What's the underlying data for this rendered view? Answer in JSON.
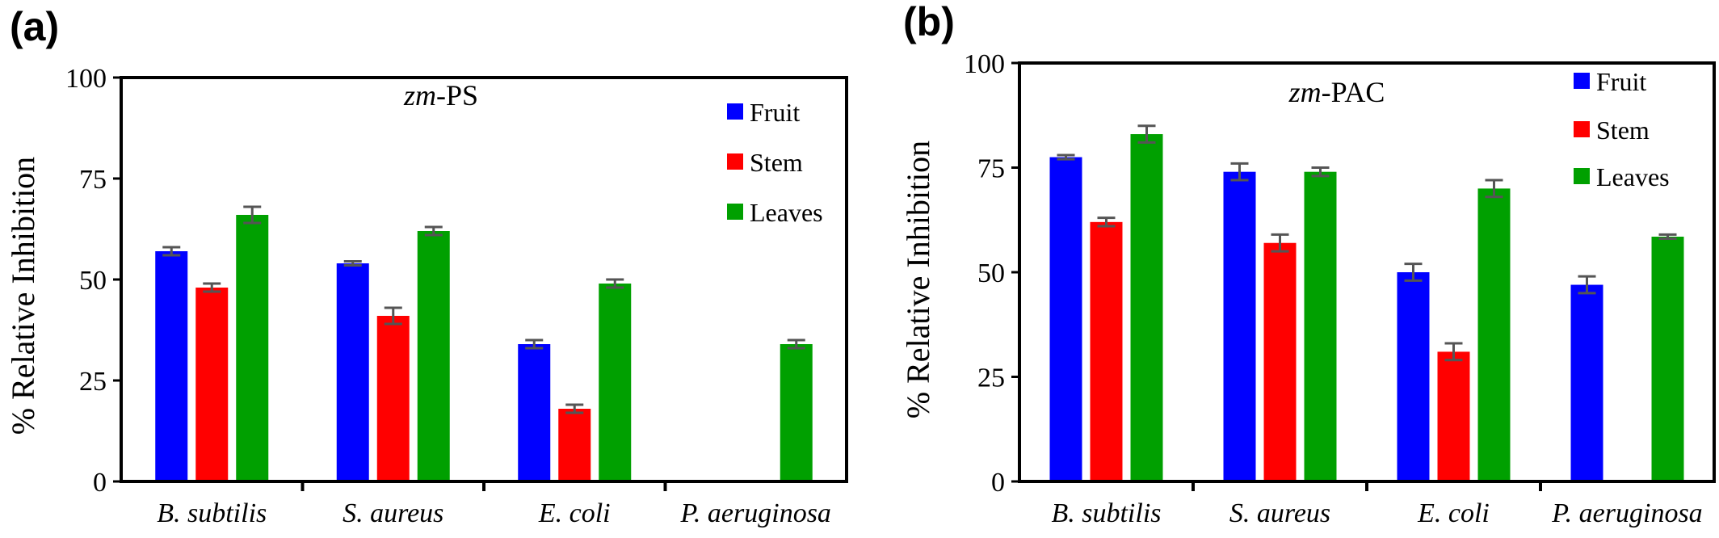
{
  "chart_data": [
    {
      "type": "bar",
      "panel_label": "(a)",
      "title_italic": "zm",
      "title_rest": "-PS",
      "xlabel": "",
      "ylabel": "% Relative Inhibition",
      "ylim": [
        0,
        100
      ],
      "yticks": [
        0,
        25,
        50,
        75,
        100
      ],
      "categories": [
        "B. subtilis",
        "S. aureus",
        "E. coli",
        "P. aeruginosa"
      ],
      "legend_position": "top-right",
      "series": [
        {
          "name": "Fruit",
          "color": "#0000ff",
          "values": [
            57,
            54,
            34,
            null
          ],
          "errors": [
            1,
            0.5,
            1,
            null
          ]
        },
        {
          "name": "Stem",
          "color": "#ff0000",
          "values": [
            48,
            41,
            18,
            null
          ],
          "errors": [
            1,
            2,
            1,
            null
          ]
        },
        {
          "name": "Leaves",
          "color": "#00a000",
          "values": [
            66,
            62,
            49,
            34
          ],
          "errors": [
            2,
            1,
            1,
            1
          ]
        }
      ]
    },
    {
      "type": "bar",
      "panel_label": "(b)",
      "title_italic": "zm",
      "title_rest": "-PAC",
      "xlabel": "",
      "ylabel": "% Relative Inhibition",
      "ylim": [
        0,
        100
      ],
      "yticks": [
        0,
        25,
        50,
        75,
        100
      ],
      "categories": [
        "B. subtilis",
        "S. aureus",
        "E. coli",
        "P. aeruginosa"
      ],
      "legend_position": "top-right",
      "series": [
        {
          "name": "Fruit",
          "color": "#0000ff",
          "values": [
            77.5,
            74,
            50,
            47
          ],
          "errors": [
            0.5,
            2,
            2,
            2
          ]
        },
        {
          "name": "Stem",
          "color": "#ff0000",
          "values": [
            62,
            57,
            31,
            null
          ],
          "errors": [
            1,
            2,
            2,
            null
          ]
        },
        {
          "name": "Leaves",
          "color": "#00a000",
          "values": [
            83,
            74,
            70,
            58.5
          ],
          "errors": [
            2,
            1,
            2,
            0.5
          ]
        }
      ]
    }
  ]
}
